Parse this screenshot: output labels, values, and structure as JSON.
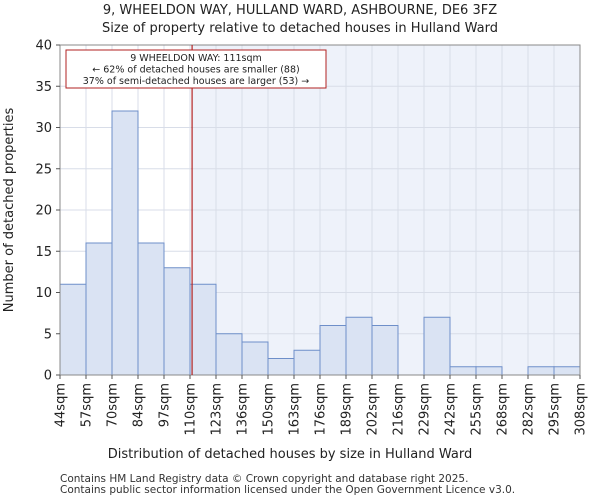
{
  "title_line1": "9, WHEELDON WAY, HULLAND WARD, ASHBOURNE, DE6 3FZ",
  "title_line2": "Size of property relative to detached houses in Hulland Ward",
  "footer_line1": "Contains HM Land Registry data © Crown copyright and database right 2025.",
  "footer_line2": "Contains public sector information licensed under the Open Government Licence v3.0.",
  "annotation": {
    "line1": "9 WHEELDON WAY: 111sqm",
    "line2": "← 62% of detached houses are smaller (88)",
    "line3": "37% of semi-detached houses are larger (53) →"
  },
  "colors": {
    "bar_fill": "#dae3f3",
    "bar_stroke": "#6e8fc9",
    "marker": "#b22222",
    "shade": "#eef2fa",
    "grid": "#d8dde8"
  },
  "chart_data": {
    "type": "bar",
    "title": "Size of property relative to detached houses in Hulland Ward",
    "xlabel": "Distribution of detached houses by size in Hulland Ward",
    "ylabel": "Number of detached properties",
    "ylim": [
      0,
      40
    ],
    "yticks": [
      0,
      5,
      10,
      15,
      20,
      25,
      30,
      35,
      40
    ],
    "bin_edges": [
      "44sqm",
      "57sqm",
      "70sqm",
      "84sqm",
      "97sqm",
      "110sqm",
      "123sqm",
      "136sqm",
      "150sqm",
      "163sqm",
      "176sqm",
      "189sqm",
      "202sqm",
      "216sqm",
      "229sqm",
      "242sqm",
      "255sqm",
      "268sqm",
      "282sqm",
      "295sqm",
      "308sqm"
    ],
    "values": [
      11,
      16,
      32,
      16,
      13,
      11,
      5,
      4,
      2,
      3,
      6,
      7,
      6,
      0,
      7,
      1,
      1,
      0,
      1,
      1
    ],
    "marker_value_sqm": 111,
    "marker_bin_position": 5.08
  }
}
